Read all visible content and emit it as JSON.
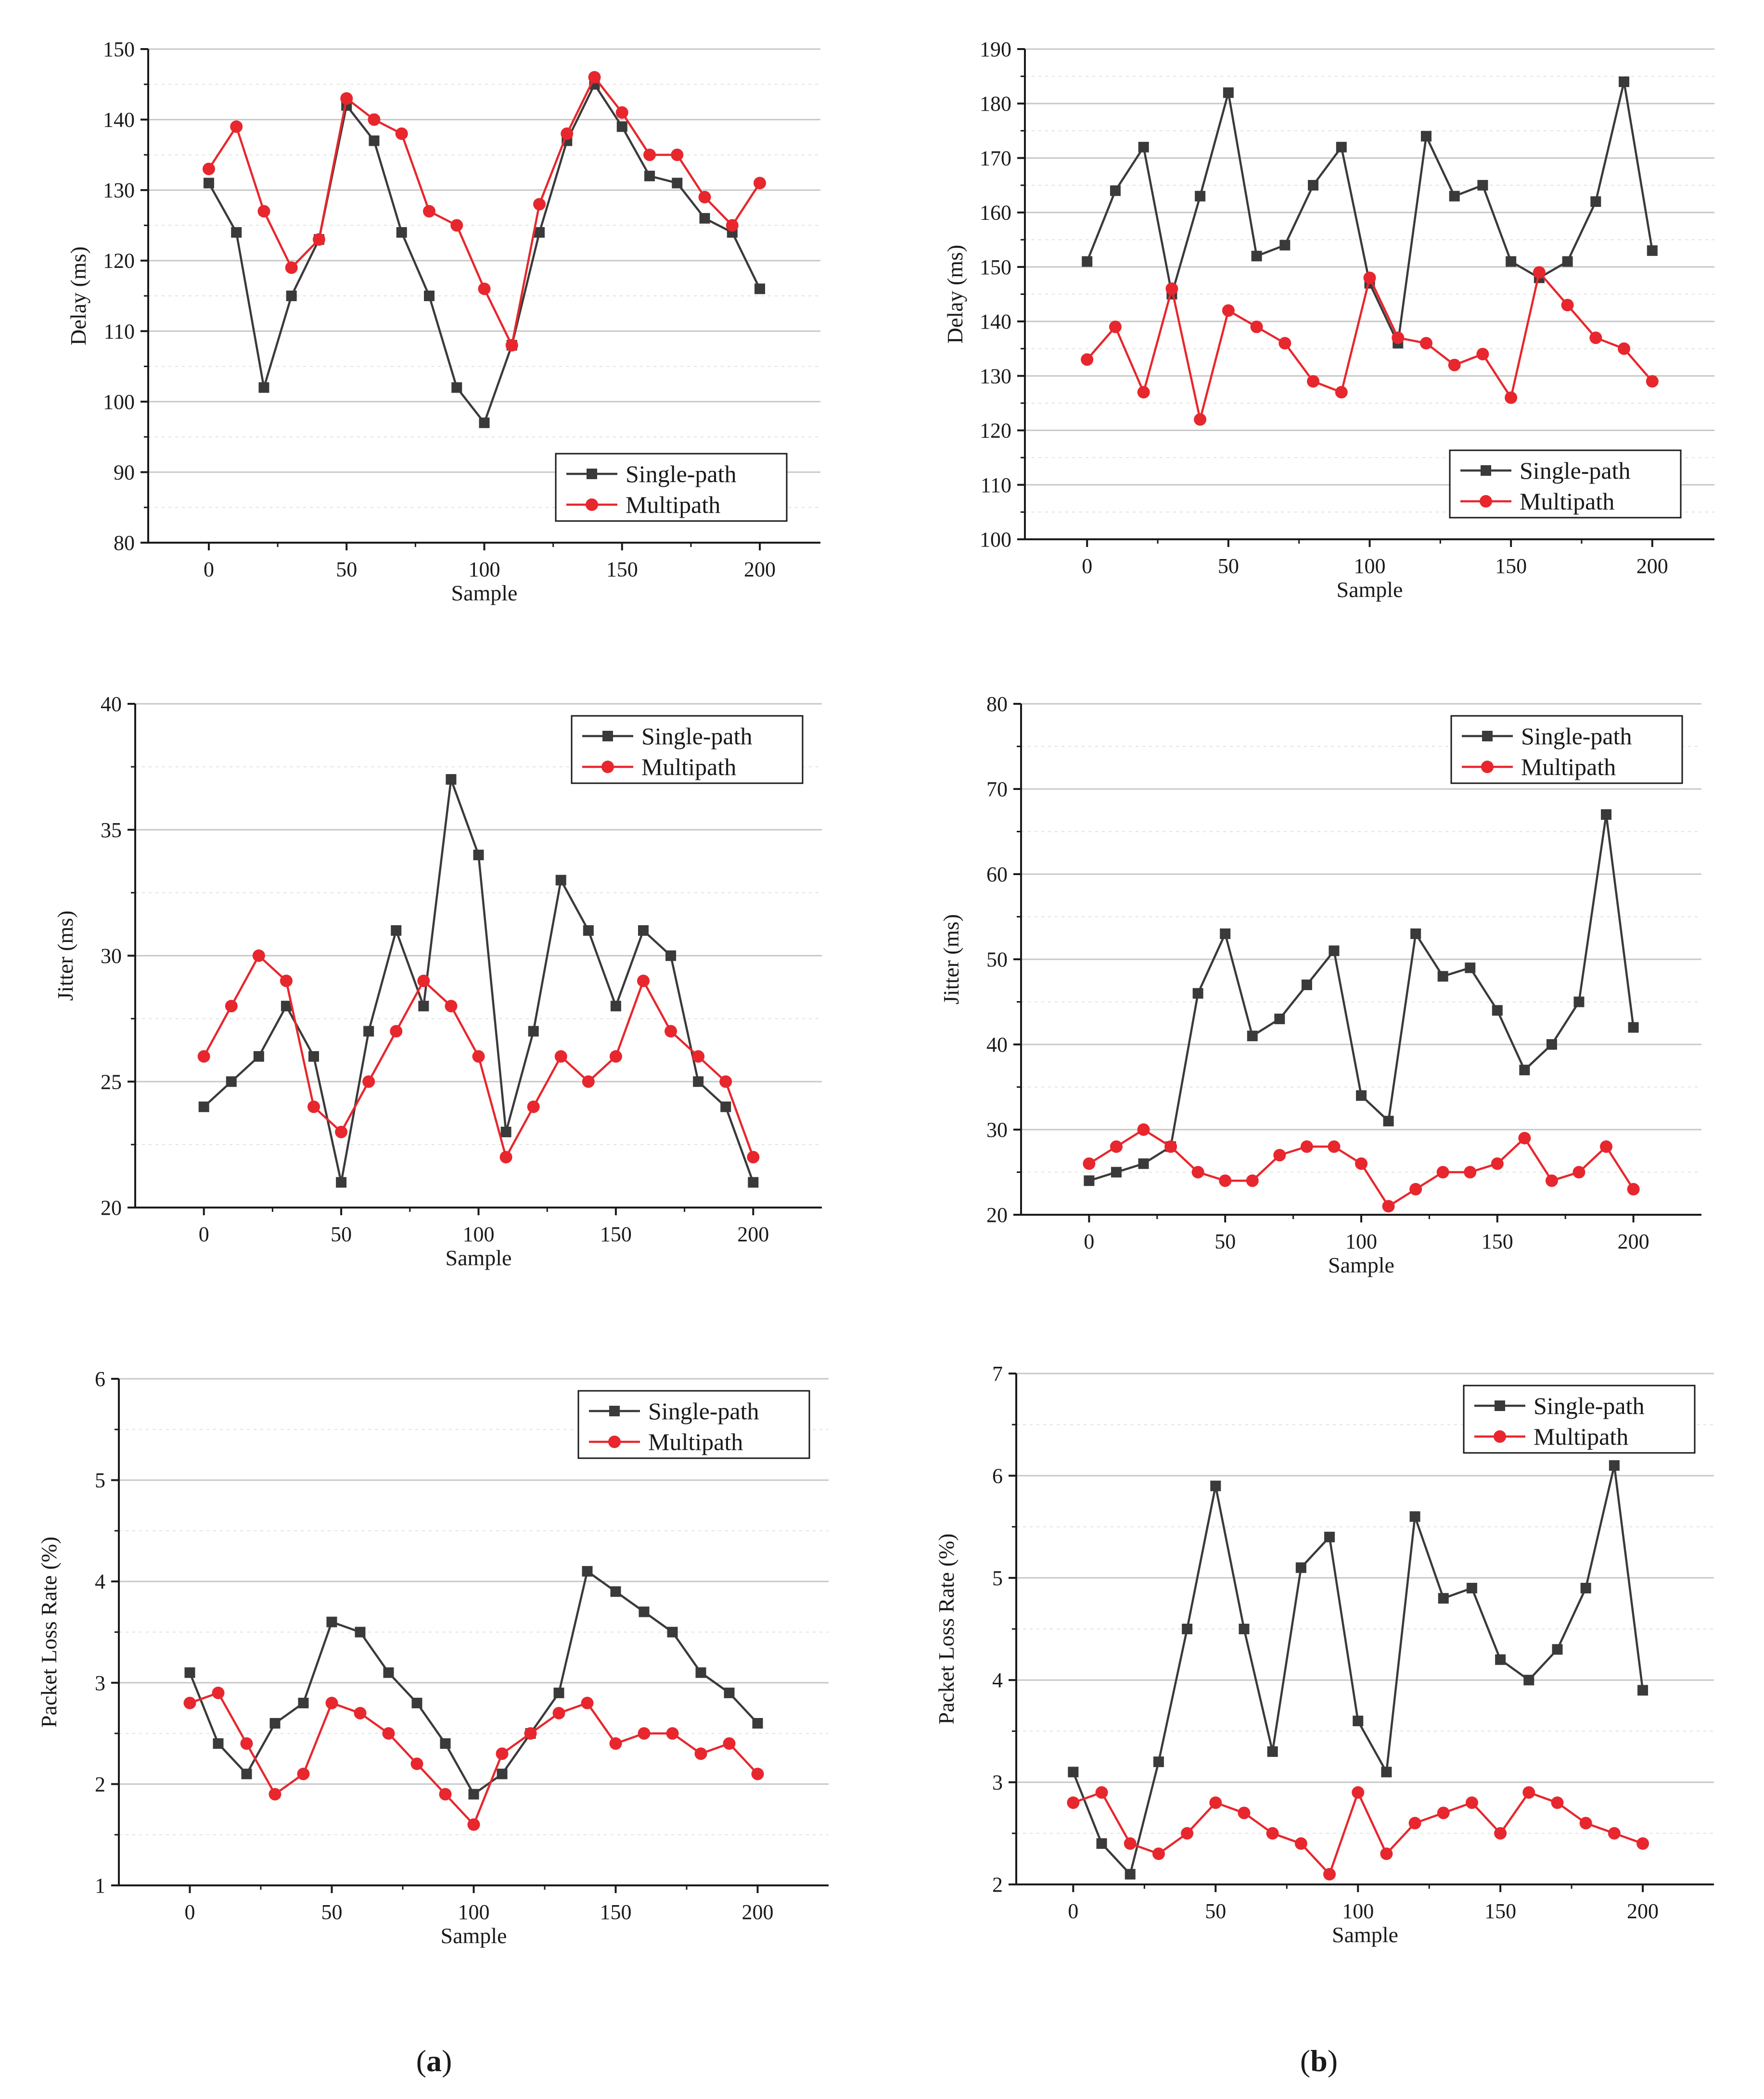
{
  "figure": {
    "panel_labels": [
      {
        "open": "(",
        "letter": "a",
        "close": ")"
      },
      {
        "open": "(",
        "letter": "b",
        "close": ")"
      }
    ],
    "colors": {
      "single": "#3a3a3a",
      "multi": "#e8262d",
      "grid": "#c8c8c8",
      "subgrid": "#e2e2e2",
      "axis": "#1a1a1a"
    }
  },
  "chart_data": [
    {
      "id": "a-delay",
      "type": "line",
      "column": "a",
      "xlabel": "Sample",
      "ylabel": "Delay (ms)",
      "xlim": [
        -22,
        222
      ],
      "ylim": [
        80,
        150
      ],
      "xticks": [
        0,
        50,
        100,
        150,
        200
      ],
      "yticks": [
        80,
        90,
        100,
        110,
        120,
        130,
        140,
        150
      ],
      "grid": true,
      "legend": "bottom-right",
      "x": [
        0,
        10,
        20,
        30,
        40,
        50,
        60,
        70,
        80,
        90,
        100,
        110,
        120,
        130,
        140,
        150,
        160,
        170,
        180,
        190,
        200
      ],
      "series": [
        {
          "name": "Single-path",
          "marker": "square",
          "values": [
            131,
            124,
            102,
            115,
            123,
            142,
            137,
            124,
            115,
            102,
            97,
            108,
            124,
            137,
            145,
            139,
            132,
            131,
            126,
            124,
            116
          ]
        },
        {
          "name": "Multipath",
          "marker": "circle",
          "values": [
            133,
            139,
            127,
            119,
            123,
            143,
            140,
            138,
            127,
            125,
            116,
            108,
            128,
            138,
            146,
            141,
            135,
            135,
            129,
            125,
            131
          ]
        }
      ]
    },
    {
      "id": "b-delay",
      "type": "line",
      "column": "b",
      "xlabel": "Sample",
      "ylabel": "Delay (ms)",
      "xlim": [
        -22,
        222
      ],
      "ylim": [
        100,
        190
      ],
      "xticks": [
        0,
        50,
        100,
        150,
        200
      ],
      "yticks": [
        100,
        110,
        120,
        130,
        140,
        150,
        160,
        170,
        180,
        190
      ],
      "grid": true,
      "legend": "bottom-right",
      "x": [
        0,
        10,
        20,
        30,
        40,
        50,
        60,
        70,
        80,
        90,
        100,
        110,
        120,
        130,
        140,
        150,
        160,
        170,
        180,
        190,
        200
      ],
      "series": [
        {
          "name": "Single-path",
          "marker": "square",
          "values": [
            151,
            164,
            172,
            145,
            163,
            182,
            152,
            154,
            165,
            172,
            147,
            136,
            174,
            163,
            165,
            151,
            148,
            151,
            162,
            184,
            153
          ]
        },
        {
          "name": "Multipath",
          "marker": "circle",
          "values": [
            133,
            139,
            127,
            146,
            122,
            142,
            139,
            136,
            129,
            127,
            148,
            137,
            136,
            132,
            134,
            126,
            149,
            143,
            137,
            135,
            129
          ]
        }
      ]
    },
    {
      "id": "a-jitter",
      "type": "line",
      "column": "a",
      "xlabel": "Sample",
      "ylabel": "Jitter (ms)",
      "xlim": [
        -25,
        225
      ],
      "ylim": [
        20,
        40
      ],
      "xticks": [
        0,
        50,
        100,
        150,
        200
      ],
      "yticks": [
        20,
        25,
        30,
        35,
        40
      ],
      "grid": true,
      "legend": "top-right",
      "x": [
        0,
        10,
        20,
        30,
        40,
        50,
        60,
        70,
        80,
        90,
        100,
        110,
        120,
        130,
        140,
        150,
        160,
        170,
        180,
        190,
        200
      ],
      "series": [
        {
          "name": "Single-path",
          "marker": "square",
          "values": [
            24,
            25,
            26,
            28,
            26,
            21,
            27,
            31,
            28,
            37,
            34,
            23,
            27,
            33,
            31,
            28,
            31,
            30,
            25,
            24,
            21
          ]
        },
        {
          "name": "Multipath",
          "marker": "circle",
          "values": [
            26,
            28,
            30,
            29,
            24,
            23,
            25,
            27,
            29,
            28,
            26,
            22,
            24,
            26,
            25,
            26,
            29,
            27,
            26,
            25,
            22
          ]
        }
      ]
    },
    {
      "id": "b-jitter",
      "type": "line",
      "column": "b",
      "xlabel": "Sample",
      "ylabel": "Jitter (ms)",
      "xlim": [
        -25,
        225
      ],
      "ylim": [
        20,
        80
      ],
      "xticks": [
        0,
        50,
        100,
        150,
        200
      ],
      "yticks": [
        20,
        30,
        40,
        50,
        60,
        70,
        80
      ],
      "grid": true,
      "legend": "top-right",
      "x": [
        0,
        10,
        20,
        30,
        40,
        50,
        60,
        70,
        80,
        90,
        100,
        110,
        120,
        130,
        140,
        150,
        160,
        170,
        180,
        190,
        200
      ],
      "series": [
        {
          "name": "Single-path",
          "marker": "square",
          "values": [
            24,
            25,
            26,
            28,
            46,
            53,
            41,
            43,
            47,
            51,
            34,
            31,
            53,
            48,
            49,
            44,
            37,
            40,
            45,
            67,
            42
          ]
        },
        {
          "name": "Multipath",
          "marker": "circle",
          "values": [
            26,
            28,
            30,
            28,
            25,
            24,
            24,
            27,
            28,
            28,
            26,
            21,
            23,
            25,
            25,
            26,
            29,
            24,
            25,
            28,
            23
          ]
        }
      ]
    },
    {
      "id": "a-loss",
      "type": "line",
      "column": "a",
      "xlabel": "Sample",
      "ylabel": "Packet Loss Rate (%)",
      "xlim": [
        -25,
        225
      ],
      "ylim": [
        1,
        6
      ],
      "xticks": [
        0,
        50,
        100,
        150,
        200
      ],
      "yticks": [
        1,
        2,
        3,
        4,
        5,
        6
      ],
      "grid": true,
      "legend": "top-right",
      "x": [
        0,
        10,
        20,
        30,
        40,
        50,
        60,
        70,
        80,
        90,
        100,
        110,
        120,
        130,
        140,
        150,
        160,
        170,
        180,
        190,
        200
      ],
      "series": [
        {
          "name": "Single-path",
          "marker": "square",
          "values": [
            3.1,
            2.4,
            2.1,
            2.6,
            2.8,
            3.6,
            3.5,
            3.1,
            2.8,
            2.4,
            1.9,
            2.1,
            2.5,
            2.9,
            4.1,
            3.9,
            3.7,
            3.5,
            3.1,
            2.9,
            2.6
          ]
        },
        {
          "name": "Multipath",
          "marker": "circle",
          "values": [
            2.8,
            2.9,
            2.4,
            1.9,
            2.1,
            2.8,
            2.7,
            2.5,
            2.2,
            1.9,
            1.6,
            2.3,
            2.5,
            2.7,
            2.8,
            2.4,
            2.5,
            2.5,
            2.3,
            2.4,
            2.1
          ]
        }
      ]
    },
    {
      "id": "b-loss",
      "type": "line",
      "column": "b",
      "xlabel": "Sample",
      "ylabel": "Packet Loss Rate (%)",
      "xlim": [
        -20,
        225
      ],
      "ylim": [
        2,
        7
      ],
      "xticks": [
        0,
        50,
        100,
        150,
        200
      ],
      "yticks": [
        2,
        3,
        4,
        5,
        6,
        7
      ],
      "grid": true,
      "legend": "top-right",
      "x": [
        0,
        10,
        20,
        30,
        40,
        50,
        60,
        70,
        80,
        90,
        100,
        110,
        120,
        130,
        140,
        150,
        160,
        170,
        180,
        190,
        200
      ],
      "series": [
        {
          "name": "Single-path",
          "marker": "square",
          "values": [
            3.1,
            2.4,
            2.1,
            3.2,
            4.5,
            5.9,
            4.5,
            3.3,
            5.1,
            5.4,
            3.6,
            3.1,
            5.6,
            4.8,
            4.9,
            4.2,
            4.0,
            4.3,
            4.9,
            6.1,
            3.9
          ]
        },
        {
          "name": "Multipath",
          "marker": "circle",
          "values": [
            2.8,
            2.9,
            2.4,
            2.3,
            2.5,
            2.8,
            2.7,
            2.5,
            2.4,
            2.1,
            2.9,
            2.3,
            2.6,
            2.7,
            2.8,
            2.5,
            2.9,
            2.8,
            2.6,
            2.5,
            2.4
          ]
        }
      ]
    }
  ]
}
